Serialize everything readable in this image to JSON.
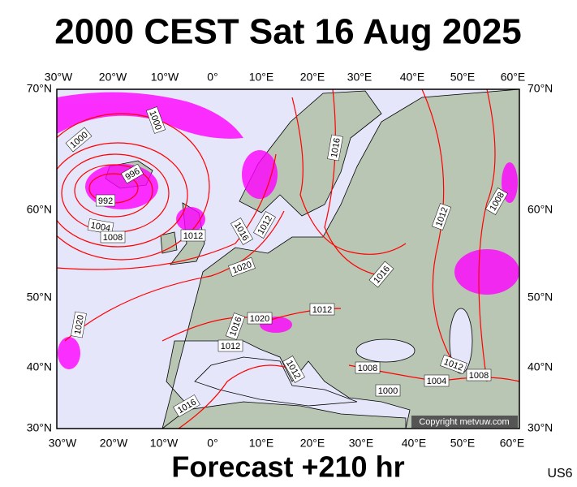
{
  "title": "2000 CEST Sat 16 Aug 2025",
  "footer": "Forecast +210 hr",
  "model": "US6",
  "credit": "Copyright metvuw.com",
  "axes": {
    "lon": [
      "30°W",
      "20°W",
      "10°W",
      "0°",
      "10°E",
      "20°E",
      "30°E",
      "40°E",
      "50°E",
      "60°E"
    ],
    "lat": [
      "70°N",
      "60°N",
      "50°N",
      "40°N",
      "30°N"
    ]
  },
  "isobars": [
    "1000",
    "1000",
    "996",
    "992",
    "1004",
    "1008",
    "1012",
    "1016",
    "1012",
    "1020",
    "1016",
    "1012",
    "1008",
    "1016",
    "1012",
    "1020",
    "1016",
    "1012",
    "1020",
    "1012",
    "1008",
    "1012",
    "1004",
    "1008",
    "1000",
    "1016"
  ]
}
